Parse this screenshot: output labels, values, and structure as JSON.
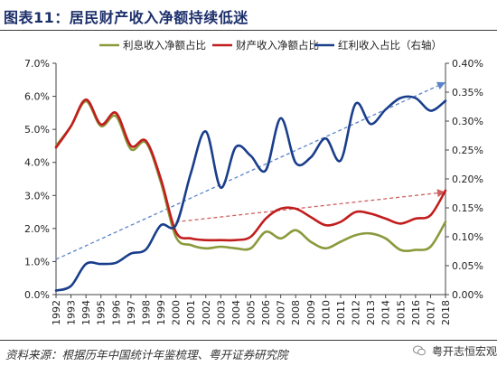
{
  "header": {
    "title": "图表11：居民财产收入净额持续低迷"
  },
  "footer": {
    "source": "资料来源：根据历年中国统计年鉴梳理、粤开证券研究院",
    "watermark": "粤开志恒宏观"
  },
  "colors": {
    "interest": "#8a9a3c",
    "property": "#c21d1d",
    "dividend": "#1a3e8c",
    "trend_property": "#d06060",
    "trend_dividend": "#5a84c8"
  },
  "chart_data": {
    "type": "line",
    "title": "",
    "xlabel": "",
    "ylabel": "",
    "legend": [
      "利息收入净额占比",
      "财产收入净额占比",
      "红利收入占比（右轴）"
    ],
    "legend_position": "top",
    "x": [
      1992,
      1993,
      1994,
      1995,
      1996,
      1997,
      1998,
      1999,
      2000,
      2001,
      2002,
      2003,
      2004,
      2005,
      2006,
      2007,
      2008,
      2009,
      2010,
      2011,
      2012,
      2013,
      2014,
      2015,
      2016,
      2017,
      2018
    ],
    "x_ticks": [
      "1992",
      "1993",
      "1994",
      "1995",
      "1996",
      "1997",
      "1998",
      "1999",
      "2000",
      "2001",
      "2002",
      "2003",
      "2004",
      "2005",
      "2006",
      "2007",
      "2008",
      "2009",
      "2010",
      "2011",
      "2012",
      "2013",
      "2014",
      "2015",
      "2016",
      "2017",
      "2018"
    ],
    "ylim_left": [
      0,
      7
    ],
    "yticks_left": [
      "0.0%",
      "1.0%",
      "2.0%",
      "3.0%",
      "4.0%",
      "5.0%",
      "6.0%",
      "7.0%"
    ],
    "ylim_right": [
      0,
      0.4
    ],
    "yticks_right": [
      "0.00%",
      "0.05%",
      "0.10%",
      "0.15%",
      "0.20%",
      "0.25%",
      "0.30%",
      "0.35%",
      "0.40%"
    ],
    "series": [
      {
        "name": "利息收入净额占比",
        "axis": "left",
        "color": "#8a9a3c",
        "values": [
          4.5,
          5.1,
          5.85,
          5.1,
          5.4,
          4.4,
          4.6,
          3.4,
          1.75,
          1.5,
          1.4,
          1.45,
          1.4,
          1.4,
          1.9,
          1.7,
          1.95,
          1.6,
          1.4,
          1.6,
          1.8,
          1.85,
          1.7,
          1.35,
          1.35,
          1.45,
          2.2
        ]
      },
      {
        "name": "财产收入净额占比",
        "axis": "left",
        "color": "#c21d1d",
        "values": [
          4.45,
          5.1,
          5.9,
          5.15,
          5.5,
          4.5,
          4.65,
          3.5,
          1.9,
          1.7,
          1.65,
          1.65,
          1.65,
          1.75,
          2.3,
          2.6,
          2.6,
          2.35,
          2.1,
          2.2,
          2.5,
          2.45,
          2.3,
          2.15,
          2.3,
          2.4,
          3.15
        ]
      },
      {
        "name": "红利收入占比（右轴）",
        "axis": "right",
        "color": "#1a3e8c",
        "values": [
          0.007,
          0.015,
          0.053,
          0.053,
          0.055,
          0.071,
          0.078,
          0.12,
          0.12,
          0.21,
          0.282,
          0.185,
          0.255,
          0.24,
          0.215,
          0.305,
          0.228,
          0.237,
          0.27,
          0.232,
          0.33,
          0.295,
          0.32,
          0.34,
          0.34,
          0.318,
          0.335
        ]
      }
    ],
    "trend_lines": [
      {
        "axis": "right",
        "from": [
          1992,
          0.061
        ],
        "to": [
          2018,
          0.367
        ],
        "color": "#5a84c8"
      },
      {
        "axis": "left",
        "from": [
          2000,
          2.2
        ],
        "to": [
          2018,
          3.1
        ],
        "color": "#d06060"
      }
    ]
  }
}
